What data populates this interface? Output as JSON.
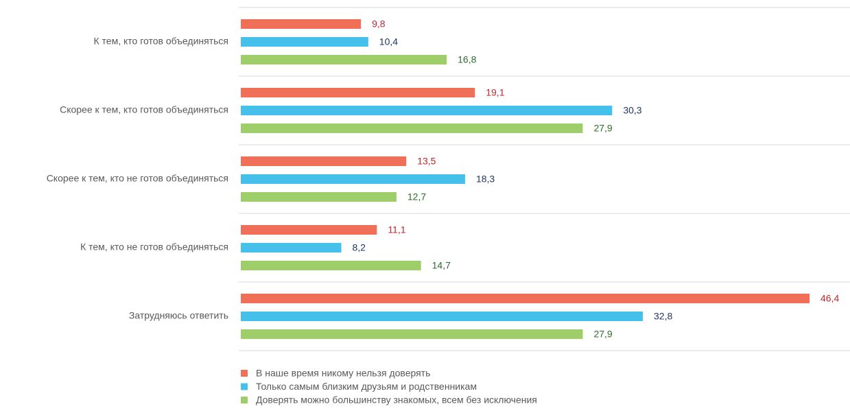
{
  "chart_data": {
    "type": "bar",
    "orientation": "horizontal",
    "categories": [
      "К тем, кто готов объединяться",
      "Скорее к тем, кто готов объединяться",
      "Скорее к тем, кто не готов объединяться",
      "К тем, кто не готов объединяться",
      "Затрудняюсь ответить"
    ],
    "series": [
      {
        "name": "В наше время никому нельзя доверять",
        "color": "#f07057",
        "label_color": "#c0272d",
        "values": [
          9.8,
          19.1,
          13.5,
          11.1,
          46.4
        ],
        "value_labels": [
          "9,8",
          "19,1",
          "13,5",
          "11,1",
          "46,4"
        ]
      },
      {
        "name": "Только самым близким друзьям и родственникам",
        "color": "#45c0ea",
        "label_color": "#1f3864",
        "values": [
          10.4,
          30.3,
          18.3,
          8.2,
          32.8
        ],
        "value_labels": [
          "10,4",
          "30,3",
          "18,3",
          "8,2",
          "32,8"
        ]
      },
      {
        "name": "Доверять можно большинству знакомых, всем без исключения",
        "color": "#9dce6a",
        "label_color": "#2e6b2e",
        "values": [
          16.8,
          27.9,
          12.7,
          14.7,
          27.9
        ],
        "value_labels": [
          "16,8",
          "27,9",
          "12,7",
          "14,7",
          "27,9"
        ]
      }
    ],
    "legend": "bottom"
  }
}
